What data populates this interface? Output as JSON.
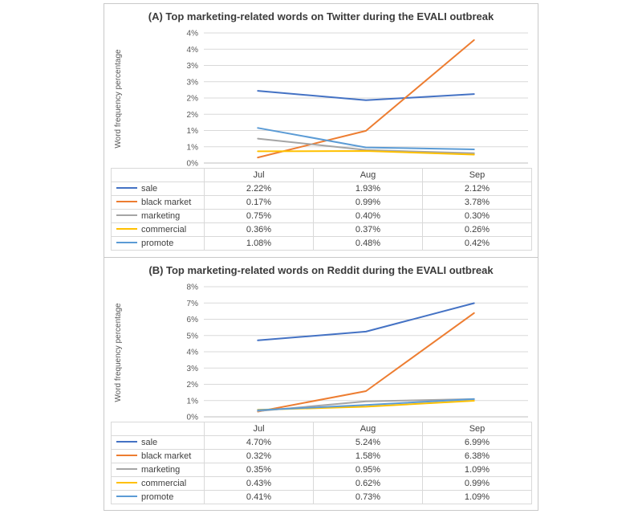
{
  "figure": {
    "description": "Two stacked Excel-style line charts with data tables",
    "accent_colors": {
      "sale": "#4472C4",
      "black_market": "#ED7D31",
      "marketing": "#A5A5A5",
      "commercial": "#FFC000",
      "promote": "#5B9BD5"
    }
  },
  "chart_data": [
    {
      "type": "line",
      "title": "(A) Top marketing-related words on Twitter during the EVALI outbreak",
      "ylabel": "Word frequency percentage",
      "xlabel": "",
      "categories": [
        "Jul",
        "Aug",
        "Sep"
      ],
      "ylim": [
        0,
        4
      ],
      "ytick_step": 0.5,
      "ytick_labels": [
        "0%",
        "1%",
        "1%",
        "2%",
        "2%",
        "3%",
        "3%",
        "4%",
        "4%"
      ],
      "grid": true,
      "legend_position": "data-table-left",
      "series": [
        {
          "name": "sale",
          "color": "#4472C4",
          "values": [
            2.22,
            1.93,
            2.12
          ]
        },
        {
          "name": "black market",
          "color": "#ED7D31",
          "values": [
            0.17,
            0.99,
            3.78
          ]
        },
        {
          "name": "marketing",
          "color": "#A5A5A5",
          "values": [
            0.75,
            0.4,
            0.3
          ]
        },
        {
          "name": "commercial",
          "color": "#FFC000",
          "values": [
            0.36,
            0.37,
            0.26
          ]
        },
        {
          "name": "promote",
          "color": "#5B9BD5",
          "values": [
            1.08,
            0.48,
            0.42
          ]
        }
      ]
    },
    {
      "type": "line",
      "title": "(B) Top marketing-related words on Reddit during the EVALI outbreak",
      "ylabel": "Word frequency percentage",
      "xlabel": "",
      "categories": [
        "Jul",
        "Aug",
        "Sep"
      ],
      "ylim": [
        0,
        8
      ],
      "ytick_step": 1,
      "ytick_labels": [
        "0%",
        "1%",
        "2%",
        "3%",
        "4%",
        "5%",
        "6%",
        "7%",
        "8%"
      ],
      "grid": true,
      "legend_position": "data-table-left",
      "series": [
        {
          "name": "sale",
          "color": "#4472C4",
          "values": [
            4.7,
            5.24,
            6.99
          ]
        },
        {
          "name": "black market",
          "color": "#ED7D31",
          "values": [
            0.32,
            1.58,
            6.38
          ]
        },
        {
          "name": "marketing",
          "color": "#A5A5A5",
          "values": [
            0.35,
            0.95,
            1.09
          ]
        },
        {
          "name": "commercial",
          "color": "#FFC000",
          "values": [
            0.43,
            0.62,
            0.99
          ]
        },
        {
          "name": "promote",
          "color": "#5B9BD5",
          "values": [
            0.41,
            0.73,
            1.09
          ]
        }
      ]
    }
  ]
}
